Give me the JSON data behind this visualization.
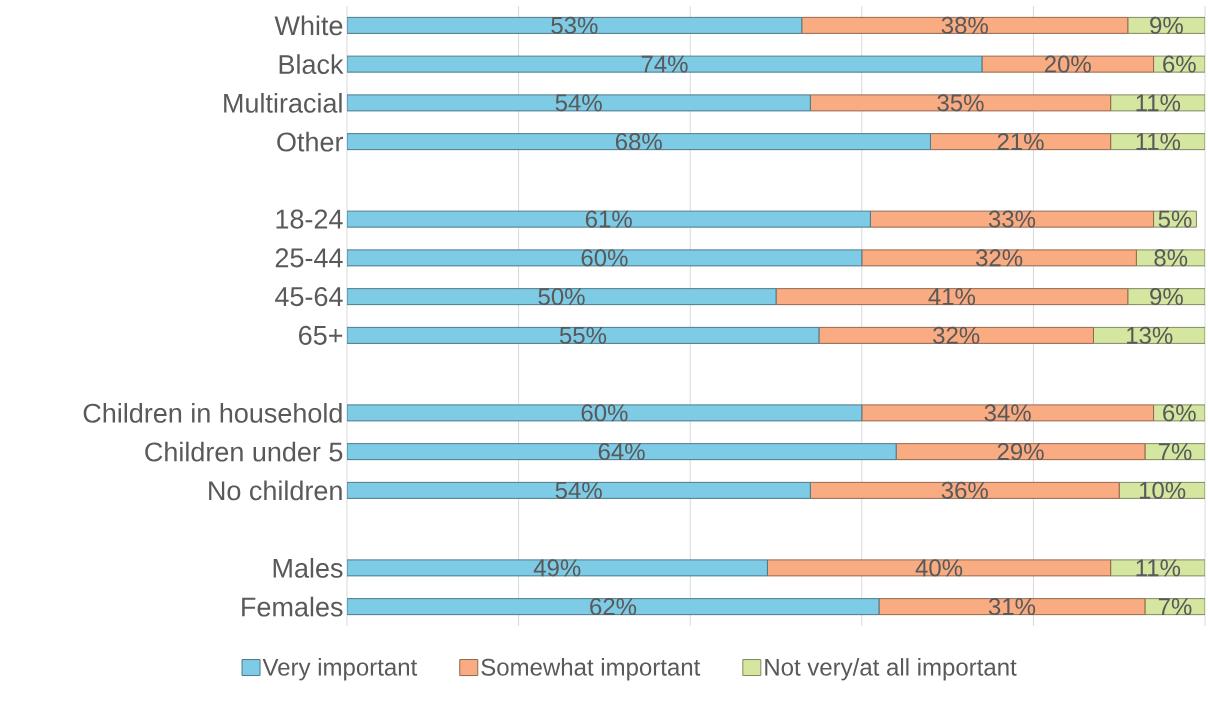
{
  "chart_data": {
    "type": "bar",
    "orientation": "horizontal",
    "stacked": true,
    "categories": [
      "White",
      "Black",
      "Multiracial",
      "Other",
      null,
      "18-24",
      "25-44",
      "45-64",
      "65+",
      null,
      "Children in household",
      "Children under 5",
      "No children",
      null,
      "Males",
      "Females"
    ],
    "series": [
      {
        "name": "Very important",
        "color": "#7ecbe6",
        "values": [
          53,
          74,
          54,
          68,
          null,
          61,
          60,
          50,
          55,
          null,
          60,
          64,
          54,
          null,
          49,
          62
        ],
        "value_labels": [
          "53%",
          "74%",
          "54%",
          "68%",
          null,
          "61%",
          "60%",
          "50%",
          "55%",
          null,
          "60%",
          "64%",
          "54%",
          null,
          "49%",
          "62%"
        ]
      },
      {
        "name": "Somewhat important",
        "color": "#f9ab82",
        "values": [
          38,
          20,
          35,
          21,
          null,
          33,
          32,
          41,
          32,
          null,
          34,
          29,
          36,
          null,
          40,
          31
        ],
        "value_labels": [
          "38%",
          "20%",
          "35%",
          "21%",
          null,
          "33%",
          "32%",
          "41%",
          "32%",
          null,
          "34%",
          "29%",
          "36%",
          null,
          "40%",
          "31%"
        ]
      },
      {
        "name": "Not very/at all important",
        "color": "#d4e6a0",
        "values": [
          9,
          6,
          11,
          11,
          null,
          5,
          8,
          9,
          13,
          null,
          6,
          7,
          10,
          null,
          11,
          7
        ],
        "value_labels": [
          "9%",
          "6%",
          "11%",
          "11%",
          null,
          "5%",
          "8%",
          "9%",
          "13%",
          null,
          "6%",
          "7%",
          "10%",
          null,
          "11%",
          "7%"
        ]
      }
    ],
    "xlim": [
      0,
      100
    ],
    "xticks": [
      {
        "value": 0,
        "label": null
      },
      {
        "value": 20,
        "label": null
      },
      {
        "value": 40,
        "label": null
      },
      {
        "value": 60,
        "label": null
      },
      {
        "value": 80,
        "label": null
      },
      {
        "value": 100,
        "label": null
      }
    ],
    "grid": "x",
    "tick_labels": "y",
    "legend": "bottom"
  }
}
